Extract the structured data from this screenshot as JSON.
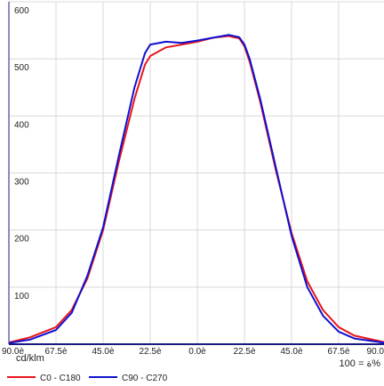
{
  "chart_data": {
    "type": "line",
    "x": [
      -90,
      -80,
      -67.5,
      -60,
      -52.5,
      -45,
      -37.5,
      -30,
      -25,
      -22.5,
      -15,
      -7.5,
      0,
      7.5,
      15,
      20,
      22.5,
      25,
      30,
      37.5,
      45,
      52.5,
      60,
      67.5,
      75,
      90
    ],
    "series": [
      {
        "name": "C0 - C180",
        "color": "#e8141c",
        "values": [
          3,
          12,
          30,
          60,
          115,
          200,
          320,
          430,
          490,
          505,
          520,
          525,
          530,
          537,
          540,
          536,
          522,
          495,
          425,
          305,
          195,
          110,
          60,
          30,
          15,
          3
        ]
      },
      {
        "name": "C90 - C270",
        "color": "#1010d0",
        "values": [
          2,
          8,
          25,
          55,
          120,
          205,
          330,
          450,
          510,
          525,
          530,
          528,
          532,
          537,
          542,
          538,
          525,
          500,
          430,
          310,
          190,
          100,
          50,
          22,
          10,
          2
        ]
      }
    ],
    "xlim": [
      -90,
      90
    ],
    "xticks": [
      {
        "value": -90,
        "label": "90.0è"
      },
      {
        "value": -67.5,
        "label": "67.5è"
      },
      {
        "value": -45,
        "label": "45.0è"
      },
      {
        "value": -22.5,
        "label": "22.5è"
      },
      {
        "value": 0,
        "label": "0.0è"
      },
      {
        "value": 22.5,
        "label": "22.5è"
      },
      {
        "value": 45,
        "label": "45.0è"
      },
      {
        "value": 67.5,
        "label": "67.5è"
      },
      {
        "value": 90,
        "label": "90.0"
      }
    ],
    "ylim": [
      0,
      600
    ],
    "yticks": [
      100,
      200,
      300,
      400,
      500,
      600
    ],
    "unit_label": "cd/klm",
    "efficiency_label": "ة = 100%",
    "grid": true
  }
}
